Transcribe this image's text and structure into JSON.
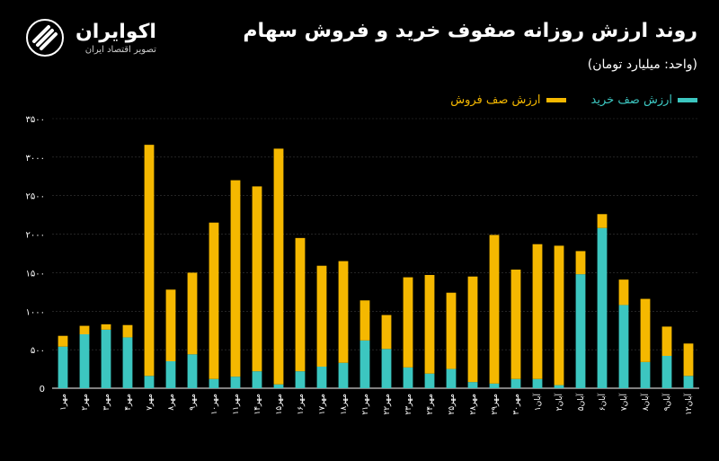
{
  "header": {
    "title": "روند ارزش روزانه صفوف خرید و فروش سهام",
    "subtitle": "(واحد: میلیارد تومان)"
  },
  "brand": {
    "name": "اکوایران",
    "tagline": "تصویر اقتصاد ایران"
  },
  "colors": {
    "buy": "#3cc6c0",
    "sell": "#f5b800",
    "grid": "#3a3a3a",
    "axis": "#ffffff"
  },
  "chart_data": {
    "type": "bar",
    "stacked": true,
    "title": "روند ارزش روزانه صفوف خرید و فروش سهام",
    "ylabel": "",
    "xlabel": "",
    "ylim": [
      0,
      3500
    ],
    "yticks": [
      0,
      500,
      1000,
      1500,
      2000,
      2500,
      3000,
      3500
    ],
    "ytick_labels": [
      "0",
      "۵۰۰",
      "۱۰۰۰",
      "۱۵۰۰",
      "۲۰۰۰",
      "۲۵۰۰",
      "۳۰۰۰",
      "۳۵۰۰"
    ],
    "legend": "top-right",
    "categories": [
      "مهر۱",
      "مهر۲",
      "مهر۳",
      "مهر۴",
      "مهر۷",
      "مهر۸",
      "مهر۹",
      "مهر۱۰",
      "مهر۱۱",
      "مهر۱۴",
      "مهر۱۵",
      "مهر۱۶",
      "مهر۱۷",
      "مهر۱۸",
      "مهر۲۱",
      "مهر۲۲",
      "مهر۲۳",
      "مهر۲۴",
      "مهر۲۵",
      "مهر۲۸",
      "مهر۲۹",
      "مهر۳۰",
      "آبان۱",
      "آبان۲",
      "آبان۵",
      "آبان۶",
      "آبان۷",
      "آبان۸",
      "آبان۹",
      "آبان۱۲"
    ],
    "series": [
      {
        "name": "ارزش صف خرید",
        "color": "#3cc6c0",
        "values": [
          540,
          700,
          760,
          660,
          160,
          350,
          440,
          120,
          150,
          220,
          50,
          220,
          280,
          330,
          620,
          510,
          270,
          190,
          250,
          80,
          60,
          120,
          120,
          40,
          1480,
          2080,
          1080,
          340,
          420,
          160
        ]
      },
      {
        "name": "ارزش صف فروش",
        "color": "#f5b800",
        "values": [
          140,
          110,
          70,
          160,
          3000,
          930,
          1060,
          2030,
          2550,
          2400,
          3060,
          1730,
          1310,
          1320,
          520,
          440,
          1170,
          1280,
          990,
          1370,
          1930,
          1420,
          1750,
          1810,
          300,
          180,
          330,
          820,
          380,
          420
        ]
      }
    ]
  }
}
